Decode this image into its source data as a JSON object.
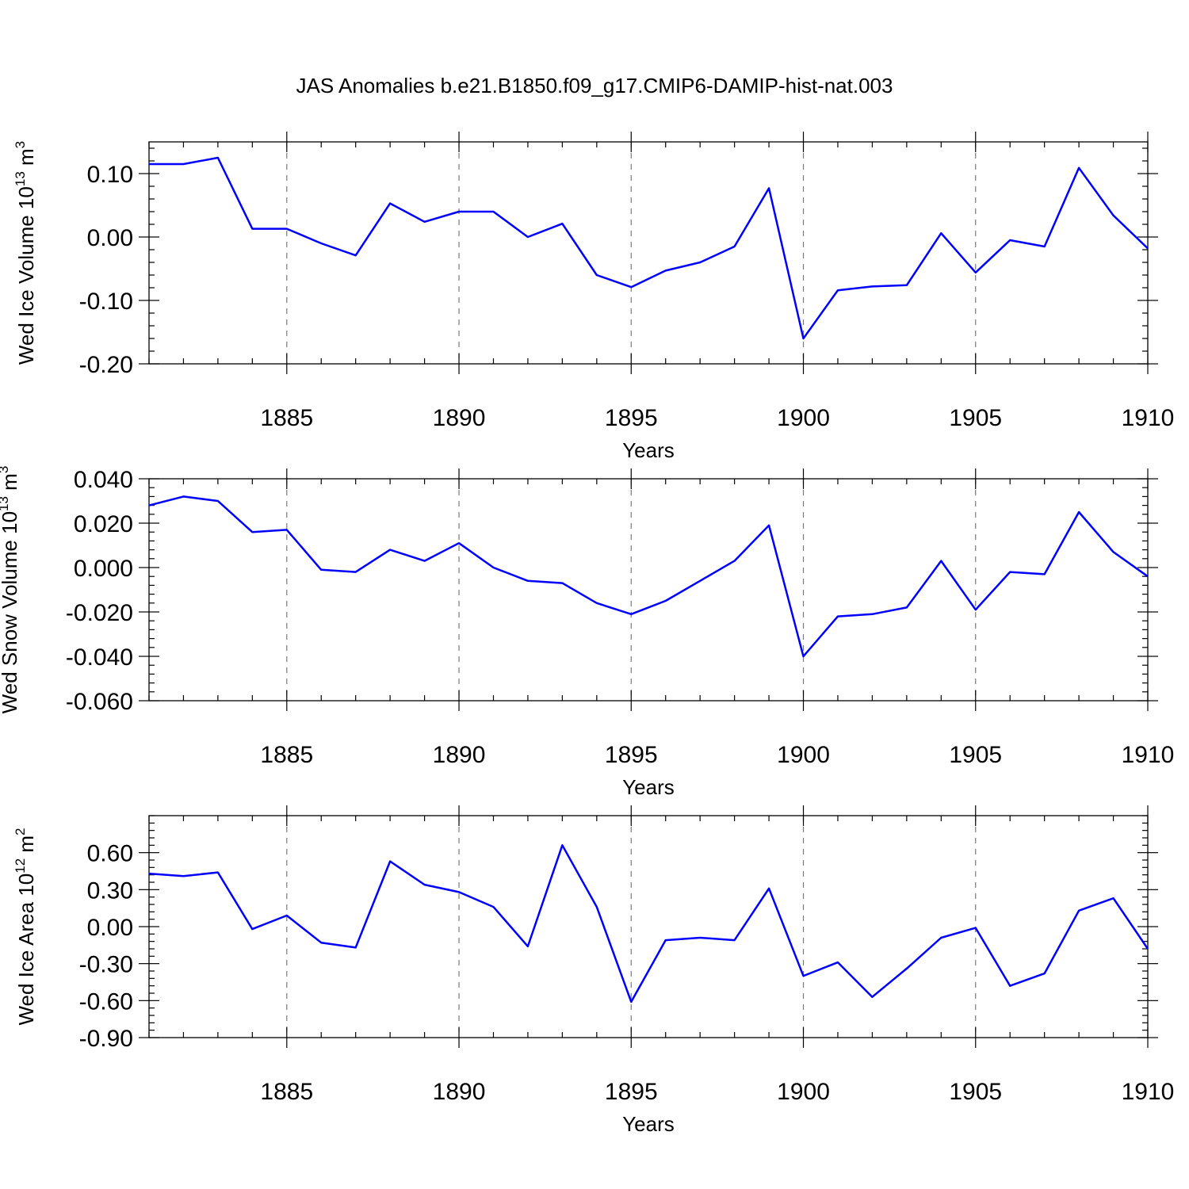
{
  "figure": {
    "title": "JAS Anomalies b.e21.B1850.f09_g17.CMIP6-DAMIP-hist-nat.003"
  },
  "colors": {
    "line": "#0000ff",
    "grid": "#7a7a7a",
    "axis": "#000000",
    "background": "#ffffff"
  },
  "chart_data": [
    {
      "type": "line",
      "xlabel": "Years",
      "ylabel": "Wed Ice Volume 10",
      "ylabel_exponent": "13",
      "ylabel_unit": "m",
      "ylabel_unit_exponent": "3",
      "xlim": [
        1881,
        1910
      ],
      "ylim": [
        -0.2,
        0.15
      ],
      "x_ticks": [
        1885,
        1890,
        1895,
        1900,
        1905,
        1910
      ],
      "y_ticks": [
        0.1,
        0.0,
        -0.1,
        -0.2
      ],
      "y_tick_labels": [
        "0.10",
        "0.00",
        "-0.10",
        "-0.20"
      ],
      "grid": "vertical dashed at major x ticks",
      "x": [
        1881,
        1882,
        1883,
        1884,
        1885,
        1886,
        1887,
        1888,
        1889,
        1890,
        1891,
        1892,
        1893,
        1894,
        1895,
        1896,
        1897,
        1898,
        1899,
        1900,
        1901,
        1902,
        1903,
        1904,
        1905,
        1906,
        1907,
        1908,
        1909,
        1910
      ],
      "series": [
        {
          "name": "Wed Ice Volume",
          "values": [
            0.115,
            0.115,
            0.125,
            0.013,
            0.013,
            -0.01,
            -0.029,
            0.053,
            0.024,
            0.04,
            0.04,
            0.0,
            0.021,
            -0.06,
            -0.079,
            -0.053,
            -0.04,
            -0.015,
            0.077,
            -0.16,
            -0.084,
            -0.078,
            -0.076,
            0.006,
            -0.056,
            -0.005,
            -0.015,
            0.109,
            0.034,
            -0.018
          ]
        }
      ]
    },
    {
      "type": "line",
      "xlabel": "Years",
      "ylabel": "Wed Snow Volume 10",
      "ylabel_exponent": "13",
      "ylabel_unit": "m",
      "ylabel_unit_exponent": "3",
      "xlim": [
        1881,
        1910
      ],
      "ylim": [
        -0.06,
        0.04
      ],
      "x_ticks": [
        1885,
        1890,
        1895,
        1900,
        1905,
        1910
      ],
      "y_ticks": [
        0.04,
        0.02,
        0.0,
        -0.02,
        -0.04,
        -0.06
      ],
      "y_tick_labels": [
        "0.040",
        "0.020",
        "0.000",
        "-0.020",
        "-0.040",
        "-0.060"
      ],
      "grid": "vertical dashed at major x ticks",
      "x": [
        1881,
        1882,
        1883,
        1884,
        1885,
        1886,
        1887,
        1888,
        1889,
        1890,
        1891,
        1892,
        1893,
        1894,
        1895,
        1896,
        1897,
        1898,
        1899,
        1900,
        1901,
        1902,
        1903,
        1904,
        1905,
        1906,
        1907,
        1908,
        1909,
        1910
      ],
      "series": [
        {
          "name": "Wed Snow Volume",
          "values": [
            0.028,
            0.032,
            0.03,
            0.016,
            0.017,
            -0.001,
            -0.002,
            0.008,
            0.003,
            0.011,
            0.0,
            -0.006,
            -0.007,
            -0.016,
            -0.021,
            -0.015,
            -0.006,
            0.003,
            0.019,
            -0.04,
            -0.022,
            -0.021,
            -0.018,
            0.003,
            -0.019,
            -0.002,
            -0.003,
            0.025,
            0.007,
            -0.004
          ]
        }
      ]
    },
    {
      "type": "line",
      "xlabel": "Years",
      "ylabel": "Wed Ice Area 10",
      "ylabel_exponent": "12",
      "ylabel_unit": "m",
      "ylabel_unit_exponent": "2",
      "xlim": [
        1881,
        1910
      ],
      "ylim": [
        -0.9,
        0.9
      ],
      "x_ticks": [
        1885,
        1890,
        1895,
        1900,
        1905,
        1910
      ],
      "y_ticks": [
        0.6,
        0.3,
        0.0,
        -0.3,
        -0.6,
        -0.9
      ],
      "y_tick_labels": [
        "0.60",
        "0.30",
        "0.00",
        "-0.30",
        "-0.60",
        "-0.90"
      ],
      "grid": "vertical dashed at major x ticks",
      "x": [
        1881,
        1882,
        1883,
        1884,
        1885,
        1886,
        1887,
        1888,
        1889,
        1890,
        1891,
        1892,
        1893,
        1894,
        1895,
        1896,
        1897,
        1898,
        1899,
        1900,
        1901,
        1902,
        1903,
        1904,
        1905,
        1906,
        1907,
        1908,
        1909,
        1910
      ],
      "series": [
        {
          "name": "Wed Ice Area",
          "values": [
            0.43,
            0.41,
            0.44,
            -0.02,
            0.09,
            -0.13,
            -0.17,
            0.53,
            0.34,
            0.28,
            0.16,
            -0.16,
            0.66,
            0.16,
            -0.61,
            -0.11,
            -0.09,
            -0.11,
            0.31,
            -0.4,
            -0.29,
            -0.57,
            -0.34,
            -0.09,
            -0.01,
            -0.48,
            -0.38,
            0.13,
            0.23,
            -0.18
          ]
        }
      ]
    }
  ]
}
